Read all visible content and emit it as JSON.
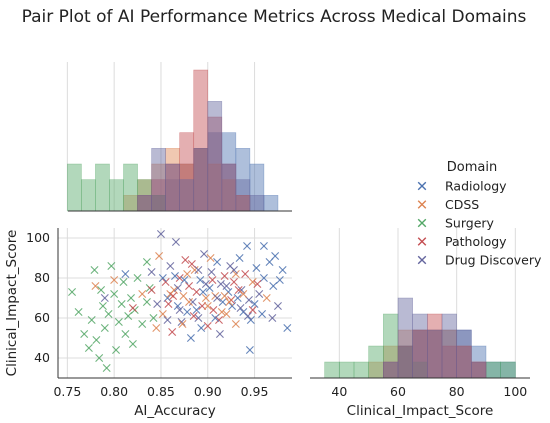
{
  "chart_data": {
    "type": "scatter",
    "title": "Pair Plot of AI Performance Metrics Across Medical Domains",
    "legend": {
      "title": "Domain",
      "placement": "right"
    },
    "series": [
      {
        "name": "Radiology",
        "color": "#4c72b0"
      },
      {
        "name": "CDSS",
        "color": "#dd8452"
      },
      {
        "name": "Surgery",
        "color": "#55a868"
      },
      {
        "name": "Pathology",
        "color": "#c44e52"
      },
      {
        "name": "Drug Discovery",
        "color": "#64659e"
      }
    ],
    "scatter": {
      "xlabel": "AI_Accuracy",
      "ylabel": "Clinical_Impact_Score",
      "xlim": [
        0.74,
        0.99
      ],
      "ylim": [
        30,
        105
      ],
      "xticks": [
        "0.75",
        "0.80",
        "0.85",
        "0.90",
        "0.95"
      ],
      "yticks": [
        "40",
        "60",
        "80",
        "100"
      ],
      "grid": true,
      "points": [
        [
          0.755,
          73,
          2
        ],
        [
          0.762,
          63,
          2
        ],
        [
          0.768,
          52,
          2
        ],
        [
          0.773,
          45,
          2
        ],
        [
          0.776,
          59,
          2
        ],
        [
          0.779,
          84,
          2
        ],
        [
          0.781,
          49,
          2
        ],
        [
          0.784,
          40,
          2
        ],
        [
          0.786,
          74,
          2
        ],
        [
          0.788,
          66,
          2
        ],
        [
          0.79,
          55,
          2
        ],
        [
          0.792,
          35,
          2
        ],
        [
          0.794,
          62,
          2
        ],
        [
          0.797,
          86,
          2
        ],
        [
          0.8,
          72,
          2
        ],
        [
          0.802,
          44,
          2
        ],
        [
          0.805,
          58,
          2
        ],
        [
          0.808,
          67,
          2
        ],
        [
          0.81,
          78,
          2
        ],
        [
          0.812,
          52,
          2
        ],
        [
          0.815,
          61,
          2
        ],
        [
          0.818,
          70,
          2
        ],
        [
          0.82,
          47,
          2
        ],
        [
          0.822,
          64,
          2
        ],
        [
          0.825,
          80,
          2
        ],
        [
          0.83,
          57,
          2
        ],
        [
          0.835,
          68,
          2
        ],
        [
          0.838,
          75,
          2
        ],
        [
          0.842,
          60,
          2
        ],
        [
          0.78,
          76,
          1
        ],
        [
          0.79,
          70,
          4
        ],
        [
          0.8,
          79,
          1
        ],
        [
          0.812,
          82,
          0
        ],
        [
          0.82,
          65,
          3
        ],
        [
          0.83,
          72,
          1
        ],
        [
          0.835,
          88,
          2
        ],
        [
          0.84,
          83,
          4
        ],
        [
          0.845,
          55,
          1
        ],
        [
          0.848,
          91,
          1
        ],
        [
          0.85,
          102,
          4
        ],
        [
          0.852,
          62,
          1
        ],
        [
          0.855,
          78,
          3
        ],
        [
          0.857,
          70,
          0
        ],
        [
          0.86,
          86,
          4
        ],
        [
          0.862,
          53,
          3
        ],
        [
          0.864,
          74,
          1
        ],
        [
          0.866,
          98,
          4
        ],
        [
          0.868,
          66,
          0
        ],
        [
          0.87,
          80,
          3
        ],
        [
          0.872,
          58,
          4
        ],
        [
          0.874,
          71,
          1
        ],
        [
          0.876,
          89,
          3
        ],
        [
          0.878,
          63,
          0
        ],
        [
          0.88,
          76,
          3
        ],
        [
          0.882,
          50,
          0
        ],
        [
          0.884,
          68,
          4
        ],
        [
          0.886,
          84,
          1
        ],
        [
          0.888,
          73,
          3
        ],
        [
          0.89,
          60,
          4
        ],
        [
          0.892,
          79,
          0
        ],
        [
          0.894,
          66,
          3
        ],
        [
          0.896,
          92,
          4
        ],
        [
          0.898,
          70,
          1
        ],
        [
          0.9,
          56,
          3
        ],
        [
          0.902,
          75,
          0
        ],
        [
          0.904,
          83,
          4
        ],
        [
          0.906,
          64,
          3
        ],
        [
          0.908,
          71,
          1
        ],
        [
          0.91,
          88,
          0
        ],
        [
          0.912,
          59,
          3
        ],
        [
          0.914,
          77,
          4
        ],
        [
          0.916,
          68,
          0
        ],
        [
          0.918,
          81,
          3
        ],
        [
          0.92,
          62,
          1
        ],
        [
          0.922,
          73,
          0
        ],
        [
          0.924,
          86,
          4
        ],
        [
          0.926,
          66,
          0
        ],
        [
          0.928,
          78,
          3
        ],
        [
          0.93,
          57,
          1
        ],
        [
          0.932,
          70,
          0
        ],
        [
          0.934,
          90,
          0
        ],
        [
          0.936,
          74,
          4
        ],
        [
          0.938,
          63,
          0
        ],
        [
          0.94,
          82,
          3
        ],
        [
          0.942,
          96,
          0
        ],
        [
          0.944,
          69,
          4
        ],
        [
          0.946,
          59,
          0
        ],
        [
          0.948,
          78,
          1
        ],
        [
          0.95,
          67,
          0
        ],
        [
          0.952,
          85,
          0
        ],
        [
          0.955,
          72,
          4
        ],
        [
          0.958,
          62,
          0
        ],
        [
          0.96,
          80,
          0
        ],
        [
          0.963,
          70,
          1
        ],
        [
          0.966,
          88,
          0
        ],
        [
          0.97,
          76,
          0
        ],
        [
          0.975,
          66,
          4
        ],
        [
          0.98,
          84,
          0
        ],
        [
          0.985,
          55,
          0
        ],
        [
          0.86,
          72,
          1
        ],
        [
          0.87,
          64,
          4
        ],
        [
          0.875,
          79,
          0
        ],
        [
          0.88,
          68,
          1
        ],
        [
          0.885,
          61,
          3
        ],
        [
          0.89,
          84,
          4
        ],
        [
          0.895,
          73,
          0
        ],
        [
          0.9,
          66,
          1
        ],
        [
          0.905,
          79,
          3
        ],
        [
          0.91,
          70,
          4
        ],
        [
          0.915,
          63,
          1
        ],
        [
          0.92,
          76,
          4
        ],
        [
          0.925,
          69,
          3
        ],
        [
          0.93,
          82,
          1
        ],
        [
          0.935,
          65,
          4
        ],
        [
          0.865,
          81,
          0
        ],
        [
          0.873,
          57,
          1
        ],
        [
          0.883,
          87,
          3
        ],
        [
          0.893,
          55,
          0
        ],
        [
          0.903,
          90,
          1
        ],
        [
          0.913,
          52,
          4
        ],
        [
          0.923,
          68,
          1
        ],
        [
          0.933,
          74,
          3
        ],
        [
          0.943,
          61,
          4
        ],
        [
          0.953,
          77,
          3
        ],
        [
          0.858,
          67,
          3
        ],
        [
          0.868,
          75,
          4
        ],
        [
          0.878,
          82,
          1
        ],
        [
          0.888,
          64,
          0
        ],
        [
          0.898,
          77,
          4
        ],
        [
          0.908,
          60,
          0
        ],
        [
          0.918,
          71,
          1
        ],
        [
          0.928,
          84,
          4
        ],
        [
          0.938,
          72,
          1
        ],
        [
          0.948,
          64,
          3
        ],
        [
          0.84,
          74,
          3
        ],
        [
          0.846,
          67,
          4
        ],
        [
          0.852,
          80,
          0
        ],
        [
          0.857,
          59,
          4
        ],
        [
          0.863,
          71,
          3
        ],
        [
          0.969,
          60,
          4
        ],
        [
          0.972,
          91,
          0
        ],
        [
          0.977,
          79,
          0
        ],
        [
          0.96,
          96,
          0
        ],
        [
          0.945,
          44,
          0
        ]
      ]
    },
    "hist_x": {
      "bin_edges": [
        0.75,
        0.765,
        0.78,
        0.795,
        0.81,
        0.825,
        0.84,
        0.855,
        0.87,
        0.885,
        0.9,
        0.915,
        0.93,
        0.945,
        0.96,
        0.975
      ],
      "counts": [
        [
          0,
          0,
          0,
          0,
          0,
          0,
          1,
          2,
          3,
          4,
          5,
          5,
          4,
          3,
          1
        ],
        [
          0,
          0,
          0,
          0,
          1,
          2,
          3,
          4,
          3,
          4,
          3,
          2,
          1,
          0,
          0
        ],
        [
          3,
          2,
          3,
          2,
          3,
          2,
          1,
          0,
          0,
          0,
          0,
          0,
          0,
          0,
          0
        ],
        [
          0,
          0,
          0,
          0,
          0,
          1,
          2,
          3,
          5,
          9,
          6,
          3,
          1,
          0,
          0
        ],
        [
          0,
          0,
          0,
          0,
          0,
          1,
          4,
          3,
          2,
          4,
          7,
          3,
          2,
          1,
          0
        ]
      ]
    },
    "hist_y": {
      "xlabel": "Clinical_Impact_Score",
      "xlim": [
        30,
        105
      ],
      "xticks": [
        "40",
        "60",
        "80",
        "100"
      ],
      "bin_edges": [
        35,
        40,
        45,
        50,
        55,
        60,
        65,
        70,
        75,
        80,
        85,
        90,
        95,
        100
      ],
      "counts": [
        [
          0,
          0,
          0,
          0,
          0,
          2,
          3,
          3,
          3,
          3,
          2,
          1,
          1
        ],
        [
          0,
          0,
          0,
          1,
          2,
          3,
          3,
          3,
          3,
          2,
          1,
          0,
          0
        ],
        [
          1,
          1,
          1,
          2,
          4,
          2,
          1,
          0,
          0,
          0,
          0,
          1,
          1
        ],
        [
          0,
          0,
          0,
          0,
          1,
          2,
          3,
          4,
          2,
          2,
          1,
          0,
          0
        ],
        [
          0,
          0,
          0,
          0,
          1,
          5,
          4,
          3,
          4,
          3,
          1,
          0,
          0
        ]
      ]
    }
  }
}
